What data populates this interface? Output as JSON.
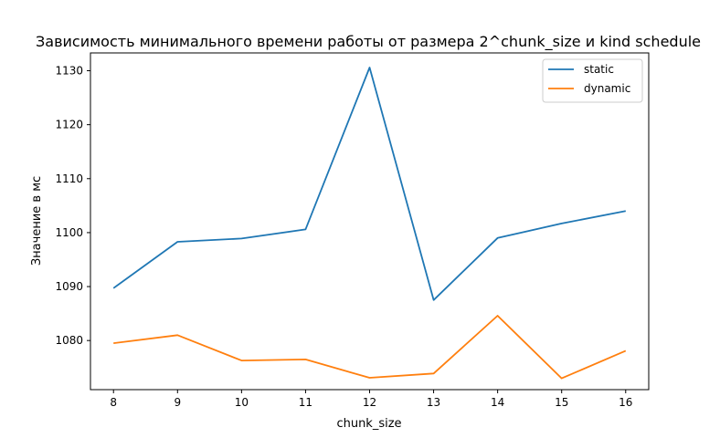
{
  "chart_data": {
    "type": "line",
    "title": "Зависимость минимального времени работы от размера 2^chunk_size и kind schedule",
    "xlabel": "chunk_size",
    "ylabel": "Значение в мс",
    "x": [
      8,
      9,
      10,
      11,
      12,
      13,
      14,
      15,
      16
    ],
    "xlim": [
      7.64,
      16.36
    ],
    "ylim": [
      1070.9,
      1133.3
    ],
    "yticks": [
      1080,
      1090,
      1100,
      1110,
      1120,
      1130
    ],
    "grid": false,
    "legend_position": "top-right",
    "series": [
      {
        "name": "static",
        "color": "#1f77b4",
        "values": [
          1089.7,
          1098.3,
          1098.9,
          1100.6,
          1130.6,
          1087.5,
          1099.0,
          1101.7,
          1104.0
        ]
      },
      {
        "name": "dynamic",
        "color": "#ff7f0e",
        "values": [
          1079.5,
          1081.0,
          1076.3,
          1076.5,
          1073.1,
          1073.9,
          1084.6,
          1073.0,
          1078.1
        ]
      }
    ]
  }
}
